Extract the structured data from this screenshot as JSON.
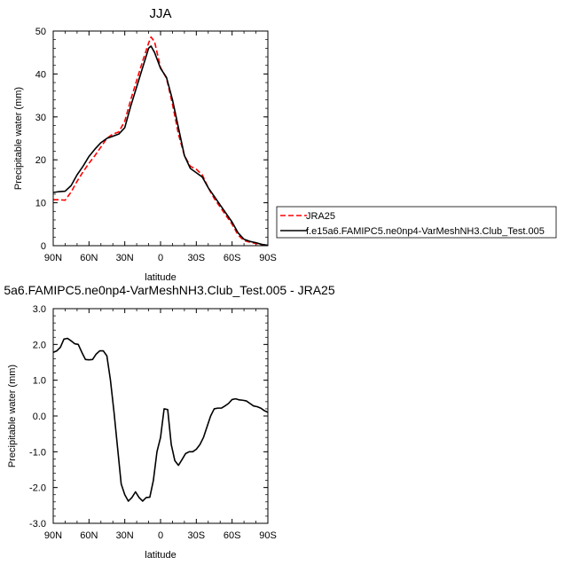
{
  "chart_data": [
    {
      "type": "line",
      "title": "JJA",
      "xlabel": "latitude",
      "ylabel": "Precipitable water (mm)",
      "xlim": [
        90,
        -90
      ],
      "ylim": [
        0,
        50
      ],
      "xticks": [
        90,
        60,
        30,
        0,
        -30,
        -60,
        -90
      ],
      "xtick_labels": [
        "90N",
        "60N",
        "30N",
        "0",
        "30S",
        "60S",
        "90S"
      ],
      "yticks": [
        0,
        10,
        20,
        30,
        40,
        50
      ],
      "ytick_labels": [
        "0",
        "10",
        "20",
        "30",
        "40",
        "50"
      ],
      "legend_position": "right",
      "series": [
        {
          "name": "JRA25",
          "color": "#ff0000",
          "dash": "dashed",
          "x": [
            90,
            85,
            80,
            75,
            70,
            65,
            60,
            55,
            50,
            45,
            40,
            35,
            30,
            25,
            20,
            15,
            10,
            8,
            5,
            0,
            -5,
            -10,
            -15,
            -20,
            -25,
            -30,
            -35,
            -40,
            -45,
            -50,
            -55,
            -60,
            -65,
            -70,
            -75,
            -80,
            -85,
            -90
          ],
          "values": [
            10.7,
            10.7,
            10.6,
            12.5,
            15.0,
            17.2,
            19.2,
            21.0,
            23.0,
            25.0,
            26.0,
            26.5,
            29.0,
            34.0,
            38.5,
            43.0,
            47.2,
            48.6,
            47.5,
            41.5,
            39.0,
            33.0,
            26.0,
            21.0,
            18.5,
            17.8,
            16.5,
            13.5,
            11.0,
            9.0,
            7.0,
            5.0,
            2.5,
            1.2,
            0.8,
            0.5,
            0.2,
            0.1
          ]
        },
        {
          "name": "f.e15a6.FAMIPC5.ne0np4-VarMeshNH3.Club_Test.005",
          "color": "#000000",
          "dash": "solid",
          "x": [
            90,
            85,
            80,
            75,
            70,
            65,
            60,
            55,
            50,
            45,
            40,
            35,
            30,
            25,
            20,
            15,
            10,
            8,
            5,
            0,
            -5,
            -10,
            -15,
            -20,
            -25,
            -30,
            -35,
            -40,
            -45,
            -50,
            -55,
            -60,
            -65,
            -70,
            -75,
            -80,
            -85,
            -90
          ],
          "values": [
            12.4,
            12.6,
            12.7,
            14.0,
            16.5,
            18.5,
            20.8,
            22.5,
            24.0,
            25.0,
            25.5,
            26.0,
            27.5,
            32.5,
            37.0,
            41.5,
            46.0,
            46.5,
            45.0,
            41.3,
            39.2,
            34.0,
            27.5,
            21.0,
            18.0,
            17.0,
            16.0,
            13.5,
            11.5,
            9.5,
            7.5,
            5.5,
            3.0,
            1.5,
            1.0,
            0.7,
            0.3,
            0.1
          ]
        }
      ]
    },
    {
      "type": "line",
      "title": "5a6.FAMIPC5.ne0np4-VarMeshNH3.Club_Test.005 - JRA25",
      "xlabel": "latitude",
      "ylabel": "Precipitable water (mm)",
      "xlim": [
        90,
        -90
      ],
      "ylim": [
        -3.0,
        3.0
      ],
      "xticks": [
        90,
        60,
        30,
        0,
        -30,
        -60,
        -90
      ],
      "xtick_labels": [
        "90N",
        "60N",
        "30N",
        "0",
        "30S",
        "60S",
        "90S"
      ],
      "yticks": [
        -3.0,
        -2.0,
        -1.0,
        0.0,
        1.0,
        2.0,
        3.0
      ],
      "ytick_labels": [
        "-3.0",
        "-2.0",
        "-1.0",
        "0.0",
        "1.0",
        "2.0",
        "3.0"
      ],
      "series": [
        {
          "color": "#000000",
          "dash": "solid",
          "x": [
            90,
            87,
            84,
            81,
            78,
            75,
            72,
            69,
            66,
            63,
            60,
            57,
            54,
            51,
            48,
            45,
            42,
            39,
            36,
            33,
            30,
            27,
            24,
            21,
            18,
            15,
            12,
            9,
            6,
            3,
            0,
            -3,
            -6,
            -9,
            -12,
            -15,
            -18,
            -21,
            -24,
            -27,
            -30,
            -33,
            -36,
            -39,
            -42,
            -45,
            -48,
            -51,
            -54,
            -57,
            -60,
            -63,
            -66,
            -69,
            -72,
            -75,
            -78,
            -81,
            -84,
            -87,
            -90
          ],
          "values": [
            1.78,
            1.82,
            1.92,
            2.15,
            2.17,
            2.1,
            2.02,
            2.0,
            1.78,
            1.58,
            1.57,
            1.58,
            1.73,
            1.82,
            1.82,
            1.68,
            1.0,
            0.1,
            -0.9,
            -1.9,
            -2.2,
            -2.38,
            -2.28,
            -2.12,
            -2.28,
            -2.38,
            -2.28,
            -2.27,
            -1.8,
            -1.0,
            -0.6,
            0.2,
            0.18,
            -0.8,
            -1.25,
            -1.38,
            -1.22,
            -1.05,
            -1.0,
            -1.0,
            -0.93,
            -0.8,
            -0.6,
            -0.3,
            0.0,
            0.2,
            0.22,
            0.22,
            0.28,
            0.35,
            0.46,
            0.48,
            0.45,
            0.44,
            0.42,
            0.35,
            0.28,
            0.26,
            0.22,
            0.15,
            0.1
          ]
        }
      ]
    }
  ]
}
